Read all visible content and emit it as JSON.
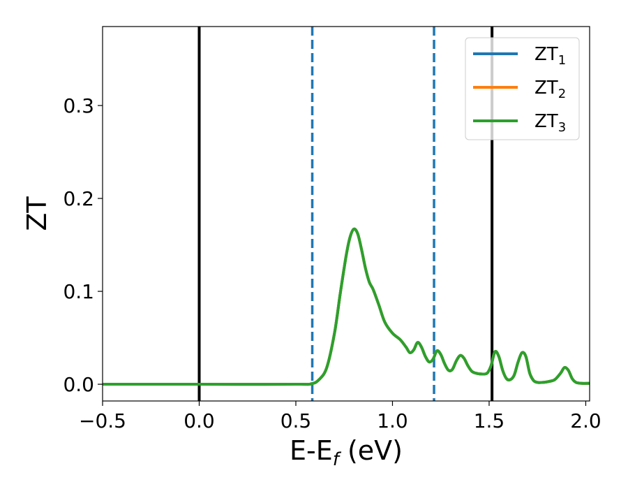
{
  "chart_data": {
    "type": "line",
    "xlabel": {
      "main": "E-E",
      "sub": "f",
      "suffix": " (eV)"
    },
    "ylabel": "ZT",
    "xlim": [
      -0.5,
      2.02
    ],
    "ylim": [
      -0.018,
      0.385
    ],
    "xticks": [
      -0.5,
      0.0,
      0.5,
      1.0,
      1.5,
      2.0
    ],
    "xtick_labels": [
      "−0.5",
      "0.0",
      "0.5",
      "1.0",
      "1.5",
      "2.0"
    ],
    "yticks": [
      0.0,
      0.1,
      0.2,
      0.3
    ],
    "ytick_labels": [
      "0.0",
      "0.1",
      "0.2",
      "0.3"
    ],
    "grid": false,
    "legend_position": "top-right",
    "vlines": [
      {
        "x": 0.0,
        "style": "solid",
        "color": "#000000"
      },
      {
        "x": 1.515,
        "style": "solid",
        "color": "#000000"
      },
      {
        "x": 0.585,
        "style": "dashed",
        "color": "#1f77b4"
      },
      {
        "x": 1.215,
        "style": "dashed",
        "color": "#1f77b4"
      }
    ],
    "series": [
      {
        "name": "ZT",
        "sub": "1",
        "color": "#1f77b4"
      },
      {
        "name": "ZT",
        "sub": "2",
        "color": "#ff7f0e"
      },
      {
        "name": "ZT",
        "sub": "3",
        "color": "#2ca02c"
      }
    ],
    "x": [
      -0.5,
      0.0,
      0.5,
      0.58,
      0.62,
      0.66,
      0.7,
      0.73,
      0.76,
      0.78,
      0.8,
      0.82,
      0.84,
      0.86,
      0.88,
      0.9,
      0.93,
      0.96,
      1.0,
      1.04,
      1.07,
      1.09,
      1.11,
      1.13,
      1.15,
      1.17,
      1.19,
      1.21,
      1.23,
      1.25,
      1.27,
      1.29,
      1.31,
      1.33,
      1.35,
      1.37,
      1.39,
      1.41,
      1.43,
      1.46,
      1.49,
      1.51,
      1.53,
      1.55,
      1.57,
      1.59,
      1.61,
      1.63,
      1.65,
      1.67,
      1.69,
      1.71,
      1.73,
      1.75,
      1.78,
      1.81,
      1.84,
      1.87,
      1.89,
      1.91,
      1.93,
      1.95,
      1.98,
      2.02
    ],
    "values": [
      0.0,
      0.0,
      0.0,
      0.0005,
      0.005,
      0.018,
      0.055,
      0.098,
      0.138,
      0.158,
      0.167,
      0.162,
      0.145,
      0.125,
      0.11,
      0.102,
      0.085,
      0.067,
      0.055,
      0.048,
      0.04,
      0.034,
      0.037,
      0.045,
      0.04,
      0.03,
      0.024,
      0.027,
      0.036,
      0.032,
      0.022,
      0.015,
      0.016,
      0.025,
      0.031,
      0.028,
      0.02,
      0.014,
      0.012,
      0.011,
      0.012,
      0.02,
      0.035,
      0.03,
      0.015,
      0.006,
      0.005,
      0.01,
      0.024,
      0.034,
      0.03,
      0.012,
      0.004,
      0.002,
      0.002,
      0.003,
      0.005,
      0.012,
      0.018,
      0.015,
      0.006,
      0.002,
      0.001,
      0.001
    ]
  }
}
